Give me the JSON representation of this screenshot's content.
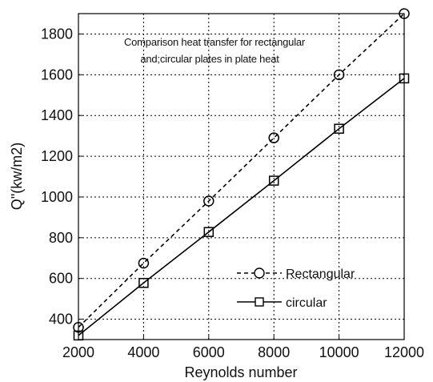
{
  "chart_data": {
    "type": "line",
    "xlabel": "Reynolds number",
    "ylabel": "Q\"(kw/m2)",
    "annotation": [
      "Comparison heat transfer for rectangular",
      "and;circular plates in plate heat"
    ],
    "x": [
      2000,
      4000,
      6000,
      8000,
      10000,
      12000
    ],
    "xlim": [
      2000,
      12000
    ],
    "ylim": [
      300,
      1900
    ],
    "xticks": [
      2000,
      4000,
      6000,
      8000,
      10000,
      12000
    ],
    "yticks": [
      400,
      600,
      800,
      1000,
      1200,
      1400,
      1600,
      1800
    ],
    "xtick_labels": [
      "2000",
      "4000",
      "6000",
      "8000",
      "10000",
      "12000"
    ],
    "ytick_labels": [
      "400",
      "600",
      "800",
      "1000",
      "1200",
      "1400",
      "1600",
      "1800"
    ],
    "grid": true,
    "legend_position": "bottom-right",
    "series": [
      {
        "name": "Rectangular",
        "marker": "circle",
        "line_style": "dashed",
        "color": "#000000",
        "values": [
          360,
          675,
          980,
          1290,
          1600,
          1900
        ]
      },
      {
        "name": "circular",
        "marker": "square",
        "line_style": "solid",
        "color": "#000000",
        "values": [
          320,
          578,
          828,
          1080,
          1335,
          1582
        ]
      }
    ]
  }
}
